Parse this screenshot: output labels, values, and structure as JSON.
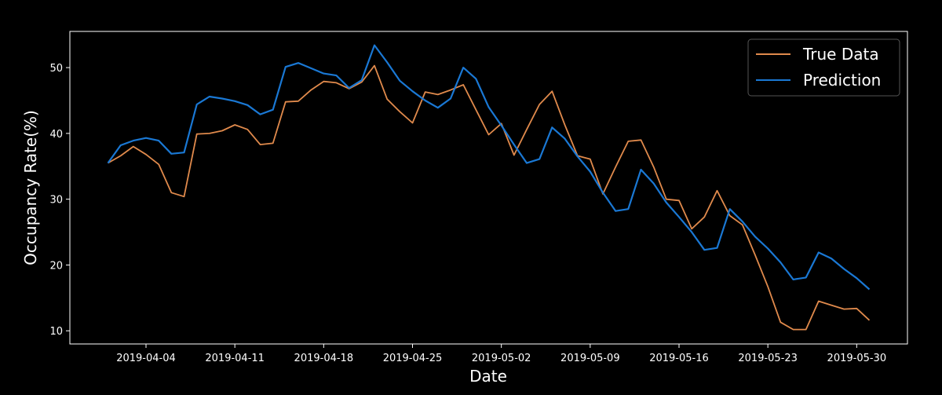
{
  "chart_data": {
    "type": "line",
    "title": "",
    "xlabel": "Date",
    "ylabel": "Occupancy Rate(%)",
    "xlim": [
      "2019-03-29",
      "2019-06-03"
    ],
    "ylim": [
      8,
      55.5
    ],
    "x_ticks": [
      "2019-04-04",
      "2019-04-11",
      "2019-04-18",
      "2019-04-25",
      "2019-05-02",
      "2019-05-09",
      "2019-05-16",
      "2019-05-23",
      "2019-05-30"
    ],
    "y_ticks": [
      10,
      20,
      30,
      40,
      50
    ],
    "grid": false,
    "legend_position": "top-right",
    "x": [
      "2019-04-01",
      "2019-04-02",
      "2019-04-03",
      "2019-04-04",
      "2019-04-05",
      "2019-04-06",
      "2019-04-07",
      "2019-04-08",
      "2019-04-09",
      "2019-04-10",
      "2019-04-11",
      "2019-04-12",
      "2019-04-13",
      "2019-04-14",
      "2019-04-15",
      "2019-04-16",
      "2019-04-17",
      "2019-04-18",
      "2019-04-19",
      "2019-04-20",
      "2019-04-21",
      "2019-04-22",
      "2019-04-23",
      "2019-04-24",
      "2019-04-25",
      "2019-04-26",
      "2019-04-27",
      "2019-04-28",
      "2019-04-29",
      "2019-04-30",
      "2019-05-01",
      "2019-05-02",
      "2019-05-03",
      "2019-05-04",
      "2019-05-05",
      "2019-05-06",
      "2019-05-07",
      "2019-05-08",
      "2019-05-09",
      "2019-05-10",
      "2019-05-11",
      "2019-05-12",
      "2019-05-13",
      "2019-05-14",
      "2019-05-15",
      "2019-05-16",
      "2019-05-17",
      "2019-05-18",
      "2019-05-19",
      "2019-05-20",
      "2019-05-21",
      "2019-05-22",
      "2019-05-23",
      "2019-05-24",
      "2019-05-25",
      "2019-05-26",
      "2019-05-27",
      "2019-05-28",
      "2019-05-29",
      "2019-05-30",
      "2019-05-31"
    ],
    "series": [
      {
        "name": "True Data",
        "color": "#e08a4c",
        "values": [
          35.5,
          36.6,
          38.0,
          36.8,
          35.3,
          31.0,
          30.4,
          39.9,
          40.0,
          40.4,
          41.3,
          40.6,
          38.3,
          38.5,
          44.8,
          44.9,
          46.6,
          47.9,
          47.7,
          46.8,
          47.8,
          50.3,
          45.2,
          43.3,
          41.6,
          46.3,
          45.9,
          46.6,
          47.4,
          43.6,
          39.8,
          41.5,
          36.7,
          40.6,
          44.4,
          46.4,
          41.3,
          36.6,
          36.1,
          30.8,
          34.9,
          38.8,
          39.0,
          34.9,
          30.0,
          29.8,
          25.5,
          27.3,
          31.3,
          27.5,
          26.1,
          21.5,
          16.7,
          11.3,
          10.2,
          10.2,
          14.5,
          13.9,
          13.3,
          13.4,
          11.6
        ]
      },
      {
        "name": "Prediction",
        "color": "#1a78d4",
        "values": [
          35.5,
          38.2,
          38.9,
          39.3,
          38.9,
          36.9,
          37.1,
          44.4,
          45.6,
          45.3,
          44.9,
          44.3,
          42.9,
          43.6,
          50.1,
          50.7,
          49.9,
          49.1,
          48.8,
          46.9,
          48.1,
          53.4,
          50.8,
          48.0,
          46.4,
          45.0,
          43.9,
          45.3,
          50.0,
          48.3,
          44.0,
          41.2,
          38.3,
          35.5,
          36.1,
          40.9,
          39.2,
          36.5,
          34.2,
          31.0,
          28.2,
          28.5,
          34.5,
          32.4,
          29.5,
          27.3,
          25.0,
          22.3,
          22.6,
          28.5,
          26.6,
          24.3,
          22.5,
          20.4,
          17.8,
          18.1,
          21.9,
          21.0,
          19.4,
          18.0,
          16.3
        ]
      }
    ]
  }
}
